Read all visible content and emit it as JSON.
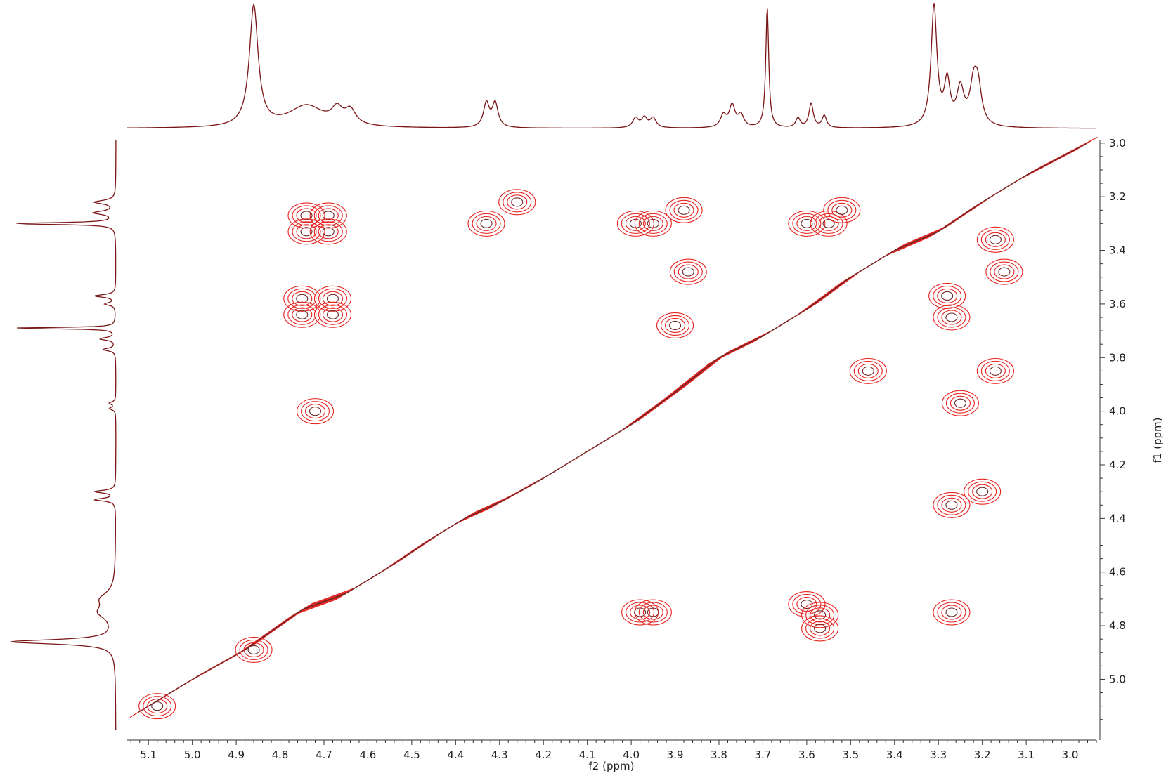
{
  "chart_data": {
    "type": "contour",
    "xlabel": "f2 (ppm)",
    "ylabel": "f1 (ppm)",
    "x_ticks": [
      "5.1",
      "5.0",
      "4.9",
      "4.8",
      "4.7",
      "4.6",
      "4.5",
      "4.4",
      "4.3",
      "4.2",
      "4.1",
      "4.0",
      "3.9",
      "3.8",
      "3.7",
      "3.6",
      "3.5",
      "3.4",
      "3.3",
      "3.2",
      "3.1",
      "3.0"
    ],
    "y_ticks": [
      "3.0",
      "3.2",
      "3.4",
      "3.6",
      "3.8",
      "4.0",
      "4.2",
      "4.4",
      "4.6",
      "4.8",
      "5.0"
    ],
    "xlim": [
      5.15,
      2.94
    ],
    "ylim": [
      2.99,
      5.19
    ],
    "grid": false,
    "colors": {
      "contour": "#e8231f",
      "contour_inner": "#6b2a2a",
      "spectrum": "#7a1515",
      "axis": "#333333"
    },
    "diagonal": [
      [
        5.12,
        5.12
      ],
      [
        5.0,
        5.0
      ],
      [
        4.88,
        4.89
      ],
      [
        4.75,
        4.74
      ],
      [
        4.65,
        4.68
      ],
      [
        4.55,
        4.58
      ],
      [
        4.45,
        4.47
      ],
      [
        4.38,
        4.4
      ],
      [
        4.3,
        4.34
      ],
      [
        4.2,
        4.25
      ],
      [
        4.1,
        4.15
      ],
      [
        4.0,
        4.05
      ],
      [
        3.9,
        3.93
      ],
      [
        3.8,
        3.8
      ],
      [
        3.7,
        3.72
      ],
      [
        3.6,
        3.62
      ],
      [
        3.5,
        3.5
      ],
      [
        3.4,
        3.4
      ],
      [
        3.3,
        3.33
      ],
      [
        3.2,
        3.22
      ],
      [
        3.1,
        3.12
      ],
      [
        2.96,
        3.0
      ]
    ],
    "cross_peaks": [
      {
        "x": 4.74,
        "y": 3.27
      },
      {
        "x": 4.69,
        "y": 3.27
      },
      {
        "x": 4.74,
        "y": 3.33
      },
      {
        "x": 4.69,
        "y": 3.33
      },
      {
        "x": 4.75,
        "y": 3.58
      },
      {
        "x": 4.68,
        "y": 3.58
      },
      {
        "x": 4.75,
        "y": 3.64
      },
      {
        "x": 4.68,
        "y": 3.64
      },
      {
        "x": 4.72,
        "y": 4.0
      },
      {
        "x": 4.26,
        "y": 3.22
      },
      {
        "x": 4.33,
        "y": 3.3
      },
      {
        "x": 3.99,
        "y": 3.3
      },
      {
        "x": 3.95,
        "y": 3.3
      },
      {
        "x": 3.88,
        "y": 3.25
      },
      {
        "x": 3.87,
        "y": 3.48
      },
      {
        "x": 3.9,
        "y": 3.68
      },
      {
        "x": 3.6,
        "y": 3.3
      },
      {
        "x": 3.55,
        "y": 3.3
      },
      {
        "x": 3.52,
        "y": 3.25
      },
      {
        "x": 3.46,
        "y": 3.85
      },
      {
        "x": 3.28,
        "y": 3.57
      },
      {
        "x": 3.27,
        "y": 3.65
      },
      {
        "x": 3.25,
        "y": 3.97
      },
      {
        "x": 3.17,
        "y": 3.85
      },
      {
        "x": 3.15,
        "y": 3.48
      },
      {
        "x": 3.17,
        "y": 3.36
      },
      {
        "x": 3.27,
        "y": 4.35
      },
      {
        "x": 3.2,
        "y": 4.3
      },
      {
        "x": 3.98,
        "y": 4.75
      },
      {
        "x": 3.95,
        "y": 4.75
      },
      {
        "x": 3.6,
        "y": 4.72
      },
      {
        "x": 3.57,
        "y": 4.76
      },
      {
        "x": 3.57,
        "y": 4.81
      },
      {
        "x": 3.27,
        "y": 4.75
      },
      {
        "x": 4.86,
        "y": 4.89
      },
      {
        "x": 5.08,
        "y": 5.1
      }
    ],
    "top_projection_peaks": [
      {
        "ppm": 4.86,
        "height": 1.0,
        "width": 0.012
      },
      {
        "ppm": 4.74,
        "height": 0.18,
        "width": 0.05
      },
      {
        "ppm": 4.67,
        "height": 0.12,
        "width": 0.015
      },
      {
        "ppm": 4.64,
        "height": 0.12,
        "width": 0.015
      },
      {
        "ppm": 4.33,
        "height": 0.2,
        "width": 0.008
      },
      {
        "ppm": 4.31,
        "height": 0.2,
        "width": 0.008
      },
      {
        "ppm": 3.99,
        "height": 0.08,
        "width": 0.008
      },
      {
        "ppm": 3.97,
        "height": 0.08,
        "width": 0.008
      },
      {
        "ppm": 3.95,
        "height": 0.08,
        "width": 0.008
      },
      {
        "ppm": 3.79,
        "height": 0.1,
        "width": 0.008
      },
      {
        "ppm": 3.77,
        "height": 0.18,
        "width": 0.008
      },
      {
        "ppm": 3.75,
        "height": 0.1,
        "width": 0.008
      },
      {
        "ppm": 3.69,
        "height": 1.0,
        "width": 0.004
      },
      {
        "ppm": 3.62,
        "height": 0.08,
        "width": 0.006
      },
      {
        "ppm": 3.59,
        "height": 0.2,
        "width": 0.006
      },
      {
        "ppm": 3.56,
        "height": 0.1,
        "width": 0.006
      },
      {
        "ppm": 3.31,
        "height": 1.0,
        "width": 0.008
      },
      {
        "ppm": 3.28,
        "height": 0.35,
        "width": 0.008
      },
      {
        "ppm": 3.25,
        "height": 0.3,
        "width": 0.01
      },
      {
        "ppm": 3.22,
        "height": 0.3,
        "width": 0.01
      },
      {
        "ppm": 3.21,
        "height": 0.3,
        "width": 0.01
      }
    ],
    "left_projection_peaks": [
      {
        "ppm": 3.22,
        "height": 0.2,
        "width": 0.008
      },
      {
        "ppm": 3.26,
        "height": 0.2,
        "width": 0.008
      },
      {
        "ppm": 3.3,
        "height": 1.0,
        "width": 0.004
      },
      {
        "ppm": 3.57,
        "height": 0.2,
        "width": 0.006
      },
      {
        "ppm": 3.6,
        "height": 0.1,
        "width": 0.006
      },
      {
        "ppm": 3.69,
        "height": 1.0,
        "width": 0.003
      },
      {
        "ppm": 3.73,
        "height": 0.15,
        "width": 0.006
      },
      {
        "ppm": 3.77,
        "height": 0.12,
        "width": 0.006
      },
      {
        "ppm": 3.97,
        "height": 0.06,
        "width": 0.006
      },
      {
        "ppm": 3.99,
        "height": 0.06,
        "width": 0.006
      },
      {
        "ppm": 4.3,
        "height": 0.2,
        "width": 0.006
      },
      {
        "ppm": 4.33,
        "height": 0.2,
        "width": 0.006
      },
      {
        "ppm": 4.7,
        "height": 0.12,
        "width": 0.03
      },
      {
        "ppm": 4.75,
        "height": 0.14,
        "width": 0.03
      },
      {
        "ppm": 4.86,
        "height": 1.0,
        "width": 0.01
      }
    ]
  }
}
